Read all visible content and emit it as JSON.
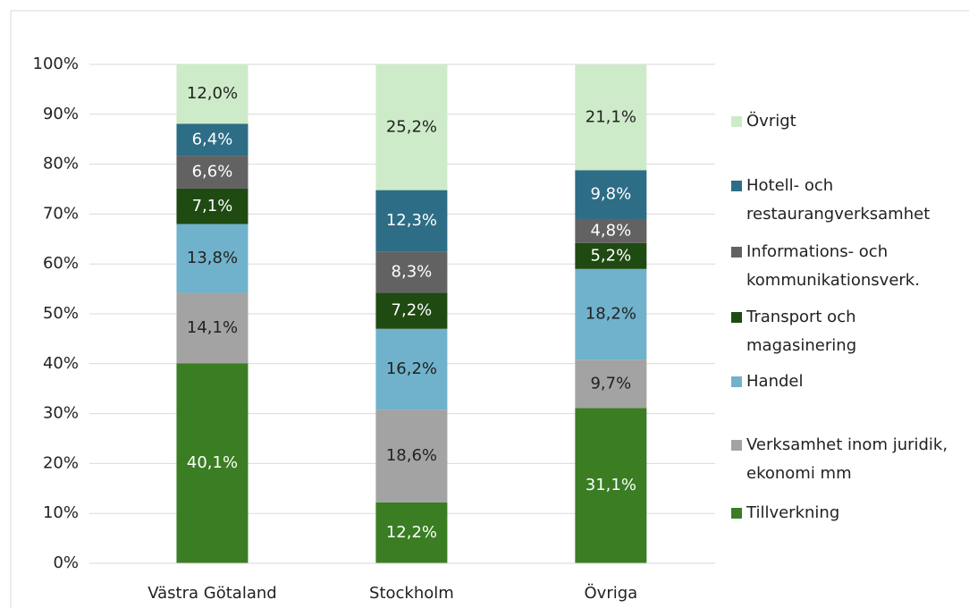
{
  "chart_data": {
    "type": "stacked_bar",
    "categories": [
      "Västra Götaland",
      "Stockholm",
      "Övriga"
    ],
    "series": [
      {
        "name": "Tillverkning",
        "color": "#3a7d22",
        "values": [
          40.1,
          12.2,
          31.1
        ],
        "value_labels": [
          "40,1%",
          "12,2%",
          "31,1%"
        ]
      },
      {
        "name": "Verksamhet inom juridik, ekonomi mm",
        "color": "#a3a3a3",
        "values": [
          14.1,
          18.6,
          9.7
        ],
        "value_labels": [
          "14,1%",
          "18,6%",
          "9,7%"
        ]
      },
      {
        "name": "Handel",
        "color": "#70b2cb",
        "values": [
          13.8,
          16.2,
          18.2
        ],
        "value_labels": [
          "13,8%",
          "16,2%",
          "18,2%"
        ]
      },
      {
        "name": "Transport och magasinering",
        "color": "#1f4a12",
        "values": [
          7.1,
          7.2,
          5.2
        ],
        "value_labels": [
          "7,1%",
          "7,2%",
          "5,2%"
        ]
      },
      {
        "name": "Informations- och kommunikationsverk.",
        "color": "#626262",
        "values": [
          6.6,
          8.3,
          4.8
        ],
        "value_labels": [
          "6,6%",
          "8,3%",
          "4,8%"
        ]
      },
      {
        "name": "Hotell- och restaurangverksamhet",
        "color": "#2d6d86",
        "values": [
          6.4,
          12.3,
          9.8
        ],
        "value_labels": [
          "6,4%",
          "12,3%",
          "9,8%"
        ]
      },
      {
        "name": "Övrigt",
        "color": "#cdebc8",
        "values": [
          12.0,
          25.2,
          21.1
        ],
        "value_labels": [
          "12,0%",
          "25,2%",
          "21,1%"
        ]
      }
    ],
    "ylim": [
      0,
      100
    ],
    "yticks": [
      {
        "value": 0,
        "label": "0%"
      },
      {
        "value": 10,
        "label": "10%"
      },
      {
        "value": 20,
        "label": "20%"
      },
      {
        "value": 30,
        "label": "30%"
      },
      {
        "value": 40,
        "label": "40%"
      },
      {
        "value": 50,
        "label": "50%"
      },
      {
        "value": 60,
        "label": "60%"
      },
      {
        "value": 70,
        "label": "70%"
      },
      {
        "value": 80,
        "label": "80%"
      },
      {
        "value": 90,
        "label": "90%"
      },
      {
        "value": 100,
        "label": "100%"
      }
    ],
    "grid": true,
    "legend": "right"
  }
}
